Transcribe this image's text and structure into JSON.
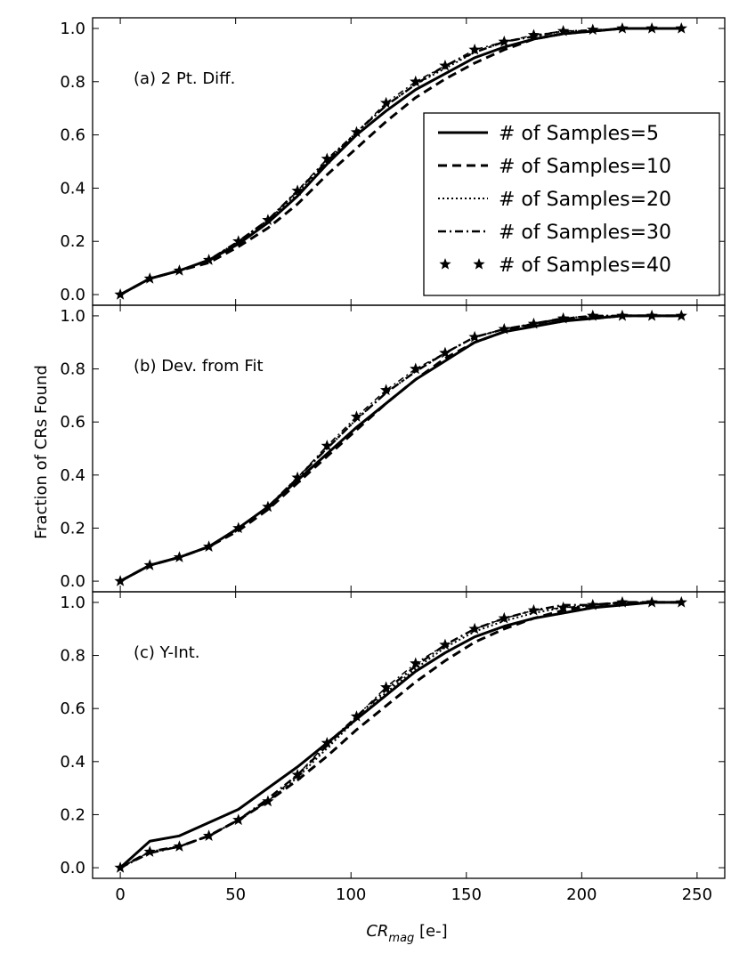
{
  "chart_data": {
    "type": "line",
    "ylabel": "Fraction of CRs Found",
    "xlabel_main": "CR",
    "xlabel_sub": "mag",
    "xlabel_unit": " [e-]",
    "xlim": [
      -12,
      262
    ],
    "ylim": [
      -0.04,
      1.04
    ],
    "xticks": [
      0,
      50,
      100,
      150,
      200,
      250
    ],
    "yticks": [
      0.0,
      0.2,
      0.4,
      0.6,
      0.8,
      1.0
    ],
    "xtick_labels": [
      "0",
      "50",
      "100",
      "150",
      "200",
      "250"
    ],
    "ytick_labels": [
      "0.0",
      "0.2",
      "0.4",
      "0.6",
      "0.8",
      "1.0"
    ],
    "x": [
      0,
      12.8,
      25.6,
      38.4,
      51.2,
      64,
      76.8,
      89.6,
      102.4,
      115.2,
      128,
      140.8,
      153.6,
      166.4,
      179.2,
      192,
      204.8,
      217.6,
      230.4,
      243.2
    ],
    "legend": {
      "placement": "right-middle of top panel",
      "entries": [
        {
          "label": "# of Samples=5",
          "style": "solid"
        },
        {
          "label": "# of Samples=10",
          "style": "dashed"
        },
        {
          "label": "# of Samples=20",
          "style": "dotted"
        },
        {
          "label": "# of Samples=30",
          "style": "dashdot"
        },
        {
          "label": "# of Samples=40",
          "style": "star-dashdot"
        }
      ]
    },
    "panels": [
      {
        "label": "(a) 2 Pt. Diff.",
        "series": [
          {
            "name": "# of Samples=5",
            "values": [
              0,
              0.06,
              0.09,
              0.13,
              0.19,
              0.27,
              0.37,
              0.49,
              0.6,
              0.69,
              0.77,
              0.83,
              0.89,
              0.93,
              0.96,
              0.98,
              0.99,
              1.0,
              1.0,
              1.0
            ]
          },
          {
            "name": "# of Samples=10",
            "values": [
              0,
              0.06,
              0.09,
              0.12,
              0.18,
              0.25,
              0.34,
              0.45,
              0.55,
              0.65,
              0.74,
              0.81,
              0.87,
              0.92,
              0.96,
              0.98,
              0.99,
              1.0,
              1.0,
              1.0
            ]
          },
          {
            "name": "# of Samples=20",
            "values": [
              0,
              0.06,
              0.09,
              0.13,
              0.2,
              0.28,
              0.38,
              0.5,
              0.61,
              0.71,
              0.79,
              0.85,
              0.91,
              0.95,
              0.97,
              0.99,
              0.99,
              1.0,
              1.0,
              1.0
            ]
          },
          {
            "name": "# of Samples=30",
            "values": [
              0,
              0.06,
              0.09,
              0.13,
              0.2,
              0.28,
              0.39,
              0.5,
              0.61,
              0.71,
              0.79,
              0.86,
              0.91,
              0.95,
              0.97,
              0.99,
              0.99,
              1.0,
              1.0,
              1.0
            ]
          },
          {
            "name": "# of Samples=40",
            "values": [
              0,
              0.06,
              0.09,
              0.13,
              0.2,
              0.28,
              0.39,
              0.51,
              0.61,
              0.72,
              0.8,
              0.86,
              0.92,
              0.95,
              0.975,
              0.99,
              0.995,
              1.0,
              1.0,
              1.0
            ]
          }
        ]
      },
      {
        "label": "(b) Dev. from Fit",
        "series": [
          {
            "name": "# of Samples=5",
            "values": [
              0,
              0.06,
              0.09,
              0.13,
              0.2,
              0.28,
              0.38,
              0.48,
              0.58,
              0.67,
              0.76,
              0.83,
              0.9,
              0.94,
              0.96,
              0.98,
              0.99,
              1.0,
              1.0,
              1.0
            ]
          },
          {
            "name": "# of Samples=10",
            "values": [
              0,
              0.06,
              0.09,
              0.13,
              0.19,
              0.27,
              0.37,
              0.47,
              0.57,
              0.67,
              0.76,
              0.84,
              0.9,
              0.94,
              0.97,
              0.99,
              0.99,
              1.0,
              1.0,
              1.0
            ]
          },
          {
            "name": "# of Samples=20",
            "values": [
              0,
              0.06,
              0.09,
              0.13,
              0.2,
              0.28,
              0.39,
              0.5,
              0.61,
              0.71,
              0.79,
              0.86,
              0.92,
              0.95,
              0.97,
              0.99,
              1.0,
              1.0,
              1.0,
              1.0
            ]
          },
          {
            "name": "# of Samples=30",
            "values": [
              0,
              0.06,
              0.09,
              0.13,
              0.2,
              0.28,
              0.39,
              0.5,
              0.61,
              0.71,
              0.79,
              0.86,
              0.92,
              0.95,
              0.97,
              0.99,
              1.0,
              1.0,
              1.0,
              1.0
            ]
          },
          {
            "name": "# of Samples=40",
            "values": [
              0,
              0.06,
              0.09,
              0.13,
              0.2,
              0.28,
              0.39,
              0.51,
              0.62,
              0.72,
              0.8,
              0.86,
              0.92,
              0.95,
              0.97,
              0.99,
              1.0,
              1.0,
              1.0,
              1.0
            ]
          }
        ]
      },
      {
        "label": "(c) Y-Int.",
        "series": [
          {
            "name": "# of Samples=5",
            "values": [
              0,
              0.1,
              0.12,
              0.17,
              0.22,
              0.3,
              0.38,
              0.47,
              0.56,
              0.65,
              0.74,
              0.81,
              0.87,
              0.91,
              0.94,
              0.96,
              0.98,
              0.99,
              1.0,
              1.0
            ]
          },
          {
            "name": "# of Samples=10",
            "values": [
              0,
              0.06,
              0.08,
              0.12,
              0.18,
              0.25,
              0.33,
              0.42,
              0.52,
              0.61,
              0.7,
              0.78,
              0.85,
              0.9,
              0.94,
              0.97,
              0.99,
              1.0,
              1.0,
              1.0
            ]
          },
          {
            "name": "# of Samples=20",
            "values": [
              0,
              0.06,
              0.08,
              0.12,
              0.18,
              0.25,
              0.34,
              0.45,
              0.56,
              0.66,
              0.75,
              0.83,
              0.89,
              0.93,
              0.96,
              0.98,
              0.99,
              1.0,
              1.0,
              1.0
            ]
          },
          {
            "name": "# of Samples=30",
            "values": [
              0,
              0.055,
              0.08,
              0.12,
              0.18,
              0.26,
              0.35,
              0.46,
              0.57,
              0.67,
              0.76,
              0.84,
              0.9,
              0.94,
              0.97,
              0.99,
              0.99,
              1.0,
              1.0,
              1.0
            ]
          },
          {
            "name": "# of Samples=40",
            "values": [
              0,
              0.06,
              0.08,
              0.12,
              0.18,
              0.25,
              0.35,
              0.47,
              0.57,
              0.68,
              0.77,
              0.84,
              0.9,
              0.94,
              0.97,
              0.98,
              0.99,
              1.0,
              1.0,
              1.0
            ]
          }
        ]
      }
    ]
  }
}
